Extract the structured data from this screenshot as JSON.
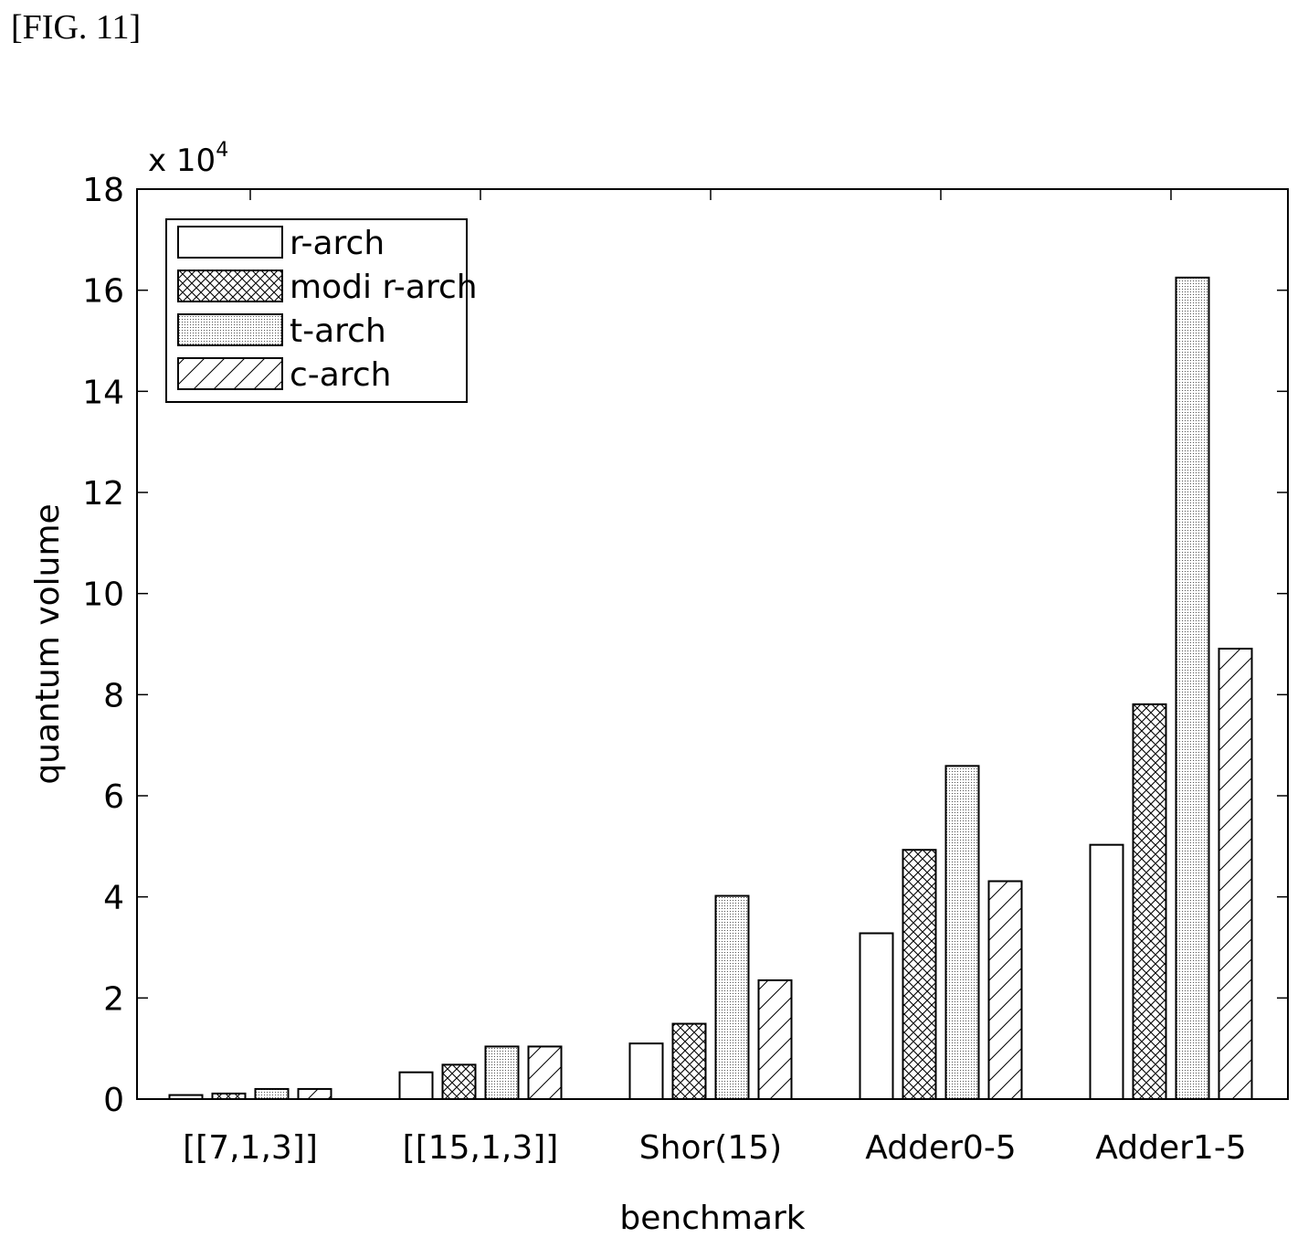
{
  "figure_label": "[FIG. 11]",
  "chart_data": {
    "type": "bar",
    "title": "",
    "xlabel": "benchmark",
    "ylabel": "quantum volume",
    "scale_label": "x 10",
    "scale_exponent": "4",
    "ylim": [
      0,
      18
    ],
    "yticks": [
      "0",
      "2",
      "4",
      "6",
      "8",
      "10",
      "12",
      "14",
      "16",
      "18"
    ],
    "grid": false,
    "legend_position": "top-left",
    "categories": [
      "[[7,1,3]]",
      "[[15,1,3]]",
      "Shor(15)",
      "Adder0-5",
      "Adder1-5"
    ],
    "series": [
      {
        "name": "r-arch",
        "pattern": "blank",
        "values": [
          0.08,
          0.53,
          1.1,
          3.28,
          5.03
        ]
      },
      {
        "name": "modi r-arch",
        "pattern": "crosshatch",
        "values": [
          0.11,
          0.68,
          1.49,
          4.93,
          7.81
        ]
      },
      {
        "name": "t-arch",
        "pattern": "dots",
        "values": [
          0.2,
          1.04,
          4.02,
          6.59,
          16.25
        ]
      },
      {
        "name": "c-arch",
        "pattern": "diagonal",
        "values": [
          0.2,
          1.04,
          2.35,
          4.31,
          8.91
        ]
      }
    ]
  }
}
